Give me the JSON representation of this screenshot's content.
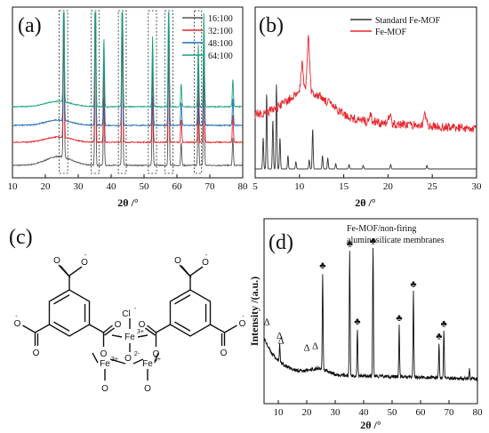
{
  "panels": {
    "a": {
      "letter": "(a)"
    },
    "b": {
      "letter": "(b)"
    },
    "c": {
      "letter": "(c)"
    },
    "d": {
      "letter": "(d)"
    }
  },
  "chart_data": [
    {
      "panel": "(a)",
      "type": "line",
      "xlabel": "2θ /°",
      "ylabel": "",
      "xlim": [
        10,
        80
      ],
      "xticks": [
        10,
        20,
        30,
        40,
        50,
        60,
        70,
        80
      ],
      "colors": [
        "#555555",
        "#e8262c",
        "#1f6fb4",
        "#18a37b"
      ],
      "series": [
        {
          "name": "16:100",
          "offset": 0
        },
        {
          "name": "32:100",
          "offset": 1
        },
        {
          "name": "48:100",
          "offset": 2
        },
        {
          "name": "64:100",
          "offset": 3
        }
      ],
      "peaks": [
        {
          "x": 25.6,
          "h": 0.85
        },
        {
          "x": 35.2,
          "h": 1.0
        },
        {
          "x": 37.8,
          "h": 0.45
        },
        {
          "x": 43.4,
          "h": 1.0
        },
        {
          "x": 52.6,
          "h": 0.45
        },
        {
          "x": 57.5,
          "h": 0.75
        },
        {
          "x": 61.3,
          "h": 0.15
        },
        {
          "x": 66.5,
          "h": 0.4
        },
        {
          "x": 68.2,
          "h": 0.6
        },
        {
          "x": 77.0,
          "h": 0.18
        }
      ],
      "boxed_regions": [
        [
          24.2,
          26.8
        ],
        [
          33.9,
          36.4
        ],
        [
          42.2,
          44.6
        ],
        [
          51.3,
          53.8
        ],
        [
          56.3,
          58.8
        ],
        [
          65.3,
          67.5
        ]
      ]
    },
    {
      "panel": "(b)",
      "type": "line",
      "xlabel": "2θ /°",
      "ylabel": "",
      "xlim": [
        5,
        30
      ],
      "xticks": [
        5,
        10,
        15,
        20,
        25,
        30
      ],
      "colors": [
        "#333333",
        "#e8262c"
      ],
      "series": [
        {
          "name": "Standard Fe-MOF",
          "peaks": [
            {
              "x": 5.9,
              "h": 0.35
            },
            {
              "x": 6.3,
              "h": 0.85
            },
            {
              "x": 7.0,
              "h": 0.55
            },
            {
              "x": 7.4,
              "h": 0.95
            },
            {
              "x": 7.8,
              "h": 0.35
            },
            {
              "x": 8.7,
              "h": 0.15
            },
            {
              "x": 9.6,
              "h": 0.08
            },
            {
              "x": 11.1,
              "h": 0.1
            },
            {
              "x": 11.5,
              "h": 0.45
            },
            {
              "x": 12.6,
              "h": 0.15
            },
            {
              "x": 13.2,
              "h": 0.12
            },
            {
              "x": 14.1,
              "h": 0.06
            },
            {
              "x": 15.6,
              "h": 0.05
            },
            {
              "x": 17.2,
              "h": 0.04
            },
            {
              "x": 20.3,
              "h": 0.05
            },
            {
              "x": 24.4,
              "h": 0.04
            }
          ]
        },
        {
          "name": "Fe-MOF",
          "peaks": [
            {
              "x": 10.3,
              "h": 0.55
            },
            {
              "x": 11.0,
              "h": 1.0
            },
            {
              "x": 18.0,
              "h": 0.12
            },
            {
              "x": 20.2,
              "h": 0.18
            },
            {
              "x": 24.2,
              "h": 0.22
            }
          ]
        }
      ]
    },
    {
      "panel": "(d)",
      "type": "line",
      "title": "Fe-MOF/non-firing aluminosilicate membranes",
      "title_lines": [
        "Fe-MOF/non-firing",
        "aluminosilicate membranes"
      ],
      "xlabel": "2θ /°",
      "ylabel": "Intensity /(a.u.)",
      "xlim": [
        5,
        80
      ],
      "xticks": [
        10,
        20,
        30,
        40,
        50,
        60,
        70,
        80
      ],
      "colors": [
        "#111111"
      ],
      "series": [
        {
          "name": ""
        }
      ],
      "peaks": [
        {
          "x": 10.5,
          "h": 0.12,
          "sym": "Δ"
        },
        {
          "x": 25.6,
          "h": 0.62,
          "sym": "♣"
        },
        {
          "x": 35.1,
          "h": 0.8,
          "sym": "♣"
        },
        {
          "x": 37.8,
          "h": 0.3,
          "sym": "♣"
        },
        {
          "x": 43.3,
          "h": 0.82,
          "sym": "♣"
        },
        {
          "x": 52.5,
          "h": 0.33,
          "sym": "♣"
        },
        {
          "x": 57.5,
          "h": 0.55,
          "sym": "♣"
        },
        {
          "x": 66.5,
          "h": 0.22,
          "sym": "♣"
        },
        {
          "x": 68.2,
          "h": 0.3,
          "sym": "♣"
        },
        {
          "x": 77.2,
          "h": 0.06
        }
      ],
      "extra_markers": [
        {
          "x": 6.0,
          "sym": "Δ"
        },
        {
          "x": 11.0,
          "sym": "Δ"
        },
        {
          "x": 20.0,
          "sym": "Δ"
        },
        {
          "x": 23.0,
          "sym": "Δ"
        }
      ]
    }
  ],
  "structure_c": {
    "center": {
      "fe": "Fe",
      "fe_charge": "3+",
      "cl": "Cl",
      "cl_charge": "-",
      "o": "O",
      "o_charge": "2-"
    },
    "lower": {
      "fe": "Fe",
      "fe_charge": "3+"
    },
    "atoms": {
      "o": "O",
      "charge_minus": "-"
    }
  }
}
